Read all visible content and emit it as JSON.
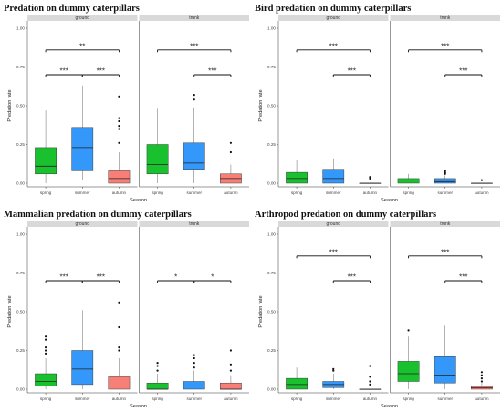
{
  "colors": {
    "spring": "#19C12E",
    "summer": "#3398FA",
    "autumn": "#F77F77"
  },
  "chart_data": [
    {
      "type": "box",
      "title": "Predation on dummy caterpillars",
      "xlabel": "Season",
      "ylabel": "Predation rate",
      "ylim": [
        0,
        1
      ],
      "yticks": [
        "0.00",
        "0.25",
        "0.50",
        "0.75",
        "1.00"
      ],
      "categories": [
        "spring",
        "summer",
        "autumn"
      ],
      "facets": [
        {
          "name": "ground",
          "boxes": [
            {
              "category": "spring",
              "lower": 0.0,
              "q1": 0.06,
              "median": 0.11,
              "q3": 0.23,
              "upper": 0.47,
              "outliers": []
            },
            {
              "category": "summer",
              "lower": 0.02,
              "q1": 0.08,
              "median": 0.23,
              "q3": 0.36,
              "upper": 0.63,
              "outliers": []
            },
            {
              "category": "autumn",
              "lower": 0.0,
              "q1": 0.0,
              "median": 0.03,
              "q3": 0.08,
              "upper": 0.2,
              "outliers": [
                0.26,
                0.35,
                0.37,
                0.4,
                0.42,
                0.56
              ]
            }
          ],
          "brackets": [
            {
              "from": 0,
              "to": 2,
              "y": 0.86,
              "label": "**"
            },
            {
              "from": 0,
              "to": 1,
              "y": 0.7,
              "label": "***"
            },
            {
              "from": 1,
              "to": 2,
              "y": 0.7,
              "label": "***"
            }
          ]
        },
        {
          "name": "trunk",
          "boxes": [
            {
              "category": "spring",
              "lower": 0.0,
              "q1": 0.06,
              "median": 0.12,
              "q3": 0.25,
              "upper": 0.48,
              "outliers": []
            },
            {
              "category": "summer",
              "lower": 0.0,
              "q1": 0.09,
              "median": 0.13,
              "q3": 0.26,
              "upper": 0.49,
              "outliers": [
                0.54,
                0.57
              ]
            },
            {
              "category": "autumn",
              "lower": 0.0,
              "q1": 0.0,
              "median": 0.03,
              "q3": 0.06,
              "upper": 0.12,
              "outliers": [
                0.2,
                0.26
              ]
            }
          ],
          "brackets": [
            {
              "from": 0,
              "to": 2,
              "y": 0.86,
              "label": "***"
            },
            {
              "from": 1,
              "to": 2,
              "y": 0.7,
              "label": "***"
            }
          ]
        }
      ]
    },
    {
      "type": "box",
      "title": "Bird predation on dummy caterpillars",
      "xlabel": "Season",
      "ylabel": "Predation rate",
      "ylim": [
        0,
        1
      ],
      "yticks": [
        "0.00",
        "0.25",
        "0.50",
        "0.75",
        "1.00"
      ],
      "categories": [
        "spring",
        "summer",
        "autumn"
      ],
      "facets": [
        {
          "name": "ground",
          "boxes": [
            {
              "category": "spring",
              "lower": 0.0,
              "q1": 0.0,
              "median": 0.03,
              "q3": 0.07,
              "upper": 0.15,
              "outliers": []
            },
            {
              "category": "summer",
              "lower": 0.0,
              "q1": 0.0,
              "median": 0.03,
              "q3": 0.09,
              "upper": 0.16,
              "outliers": []
            },
            {
              "category": "autumn",
              "lower": 0.0,
              "q1": 0.0,
              "median": 0.0,
              "q3": 0.0,
              "upper": 0.0,
              "outliers": [
                0.03,
                0.04
              ]
            }
          ],
          "brackets": [
            {
              "from": 0,
              "to": 2,
              "y": 0.86,
              "label": "***"
            },
            {
              "from": 1,
              "to": 2,
              "y": 0.7,
              "label": "***"
            }
          ]
        },
        {
          "name": "trunk",
          "boxes": [
            {
              "category": "spring",
              "lower": 0.0,
              "q1": 0.0,
              "median": 0.02,
              "q3": 0.03,
              "upper": 0.06,
              "outliers": []
            },
            {
              "category": "summer",
              "lower": 0.0,
              "q1": 0.0,
              "median": 0.01,
              "q3": 0.03,
              "upper": 0.05,
              "outliers": [
                0.06,
                0.07,
                0.08
              ]
            },
            {
              "category": "autumn",
              "lower": 0.0,
              "q1": 0.0,
              "median": 0.0,
              "q3": 0.0,
              "upper": 0.0,
              "outliers": [
                0.02
              ]
            }
          ],
          "brackets": [
            {
              "from": 0,
              "to": 2,
              "y": 0.86,
              "label": "***"
            },
            {
              "from": 1,
              "to": 2,
              "y": 0.7,
              "label": "***"
            }
          ]
        }
      ]
    },
    {
      "type": "box",
      "title": "Mammalian predation on dummy caterpillars",
      "xlabel": "Season",
      "ylabel": "Predation rate",
      "ylim": [
        0,
        1
      ],
      "yticks": [
        "0.00",
        "0.25",
        "0.50",
        "0.75",
        "1.00"
      ],
      "categories": [
        "spring",
        "summer",
        "autumn"
      ],
      "facets": [
        {
          "name": "ground",
          "boxes": [
            {
              "category": "spring",
              "lower": 0.0,
              "q1": 0.02,
              "median": 0.05,
              "q3": 0.1,
              "upper": 0.2,
              "outliers": [
                0.23,
                0.25,
                0.27,
                0.32,
                0.34
              ]
            },
            {
              "category": "summer",
              "lower": 0.0,
              "q1": 0.03,
              "median": 0.13,
              "q3": 0.25,
              "upper": 0.51,
              "outliers": []
            },
            {
              "category": "autumn",
              "lower": 0.0,
              "q1": 0.0,
              "median": 0.02,
              "q3": 0.08,
              "upper": 0.2,
              "outliers": [
                0.25,
                0.27,
                0.4,
                0.56
              ]
            }
          ],
          "brackets": [
            {
              "from": 0,
              "to": 1,
              "y": 0.7,
              "label": "***"
            },
            {
              "from": 1,
              "to": 2,
              "y": 0.7,
              "label": "***"
            }
          ]
        },
        {
          "name": "trunk",
          "boxes": [
            {
              "category": "spring",
              "lower": 0.0,
              "q1": 0.0,
              "median": 0.0,
              "q3": 0.04,
              "upper": 0.1,
              "outliers": [
                0.12,
                0.15,
                0.17
              ]
            },
            {
              "category": "summer",
              "lower": 0.0,
              "q1": 0.0,
              "median": 0.02,
              "q3": 0.05,
              "upper": 0.12,
              "outliers": [
                0.14,
                0.17,
                0.2,
                0.22
              ]
            },
            {
              "category": "autumn",
              "lower": 0.0,
              "q1": 0.0,
              "median": 0.0,
              "q3": 0.04,
              "upper": 0.09,
              "outliers": [
                0.12,
                0.16,
                0.25
              ]
            }
          ],
          "brackets": [
            {
              "from": 0,
              "to": 1,
              "y": 0.7,
              "label": "*"
            },
            {
              "from": 1,
              "to": 2,
              "y": 0.7,
              "label": "*"
            }
          ]
        }
      ]
    },
    {
      "type": "box",
      "title": "Arthropod predation on dummy caterpillars",
      "xlabel": "Season",
      "ylabel": "Predation rate",
      "ylim": [
        0,
        1
      ],
      "yticks": [
        "0.00",
        "0.25",
        "0.50",
        "0.75",
        "1.00"
      ],
      "categories": [
        "spring",
        "summer",
        "autumn"
      ],
      "facets": [
        {
          "name": "ground",
          "boxes": [
            {
              "category": "spring",
              "lower": 0.0,
              "q1": 0.0,
              "median": 0.03,
              "q3": 0.07,
              "upper": 0.14,
              "outliers": []
            },
            {
              "category": "summer",
              "lower": 0.0,
              "q1": 0.01,
              "median": 0.03,
              "q3": 0.05,
              "upper": 0.1,
              "outliers": [
                0.12,
                0.13
              ]
            },
            {
              "category": "autumn",
              "lower": 0.0,
              "q1": 0.0,
              "median": 0.0,
              "q3": 0.0,
              "upper": 0.0,
              "outliers": [
                0.03,
                0.05,
                0.08,
                0.15
              ]
            }
          ],
          "brackets": [
            {
              "from": 0,
              "to": 2,
              "y": 0.86,
              "label": "***"
            },
            {
              "from": 1,
              "to": 2,
              "y": 0.7,
              "label": "***"
            }
          ]
        },
        {
          "name": "trunk",
          "boxes": [
            {
              "category": "spring",
              "lower": 0.0,
              "q1": 0.05,
              "median": 0.1,
              "q3": 0.18,
              "upper": 0.34,
              "outliers": [
                0.38
              ]
            },
            {
              "category": "summer",
              "lower": 0.0,
              "q1": 0.04,
              "median": 0.09,
              "q3": 0.21,
              "upper": 0.41,
              "outliers": []
            },
            {
              "category": "autumn",
              "lower": 0.0,
              "q1": 0.0,
              "median": 0.01,
              "q3": 0.02,
              "upper": 0.04,
              "outliers": [
                0.05,
                0.07,
                0.09,
                0.11
              ]
            }
          ],
          "brackets": [
            {
              "from": 0,
              "to": 2,
              "y": 0.86,
              "label": "***"
            },
            {
              "from": 1,
              "to": 2,
              "y": 0.7,
              "label": "***"
            }
          ]
        }
      ]
    }
  ]
}
